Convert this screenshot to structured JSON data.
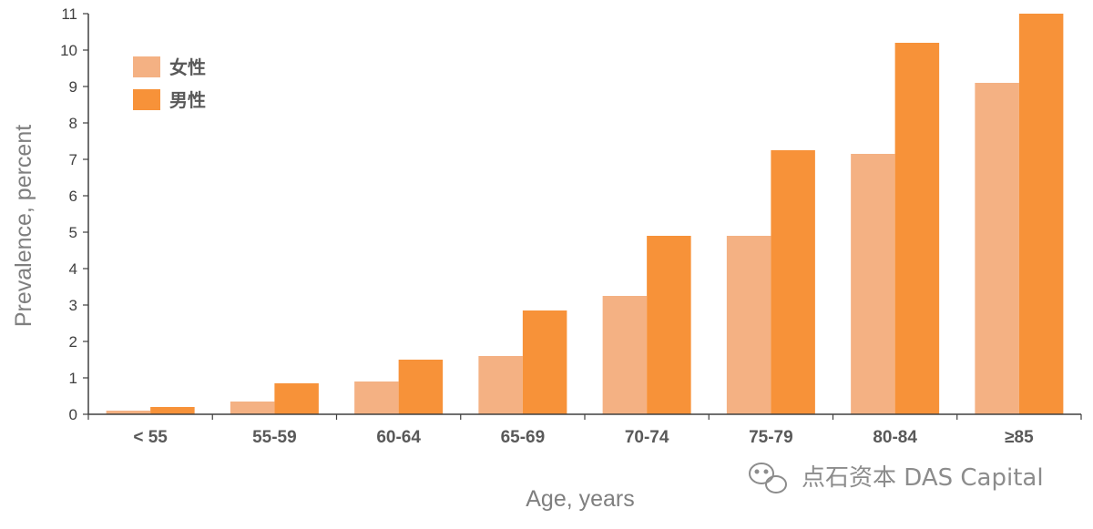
{
  "chart_data": {
    "type": "bar",
    "categories": [
      "< 55",
      "55-59",
      "60-64",
      "65-69",
      "70-74",
      "75-79",
      "80-84",
      "≥85"
    ],
    "series": [
      {
        "name": "女性",
        "values": [
          0.1,
          0.35,
          0.9,
          1.6,
          3.25,
          4.9,
          7.15,
          9.1
        ]
      },
      {
        "name": "男性",
        "values": [
          0.2,
          0.85,
          1.5,
          2.85,
          4.9,
          7.25,
          10.2,
          11.0
        ]
      }
    ],
    "xlabel": "Age, years",
    "ylabel": "Prevalence, percent",
    "ylim": [
      0,
      11
    ],
    "yticks": [
      0,
      1,
      2,
      3,
      4,
      5,
      6,
      7,
      8,
      9,
      10,
      11
    ],
    "grid": false,
    "legend": "top-left"
  },
  "colors": {
    "female": "#F4B183",
    "male": "#F79239",
    "axis": "#404040"
  },
  "watermark": {
    "text": "点石资本 DAS Capital",
    "icon": "wechat-icon"
  }
}
